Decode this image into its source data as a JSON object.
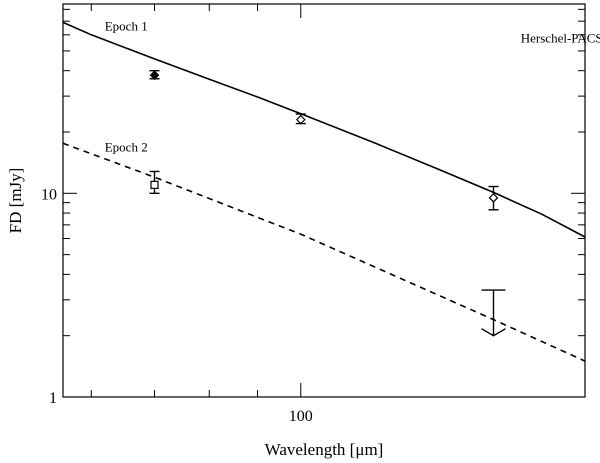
{
  "chart_data": {
    "type": "line",
    "title": "",
    "xlabel": "Wavelength [μm]",
    "ylabel": "FD [mJy]",
    "x_scale": "log",
    "y_scale": "log",
    "xlim": [
      56,
      200
    ],
    "ylim": [
      1,
      85
    ],
    "grid": false,
    "x_ticks": [
      {
        "value": 100,
        "label": "100"
      }
    ],
    "y_ticks": [
      {
        "value": 1,
        "label": "1"
      },
      {
        "value": 10,
        "label": "10"
      }
    ],
    "annotations": [
      {
        "text": "Herschel-PACS",
        "x": 171,
        "y": 55
      },
      {
        "text": "Epoch 1",
        "x": 62,
        "y": 63
      },
      {
        "text": "Epoch 2",
        "x": 62,
        "y": 16
      }
    ],
    "series": [
      {
        "name": "Epoch 1",
        "line_style": "solid",
        "model_x": [
          56,
          60,
          70,
          80,
          90,
          100,
          120,
          140,
          160,
          180,
          200
        ],
        "model_y": [
          69.0,
          60.0,
          45.7,
          36.3,
          29.7,
          24.6,
          17.6,
          13.1,
          10.1,
          7.9,
          6.1
        ],
        "points": [
          {
            "x": 70,
            "y": 38.0,
            "err_low": 36.5,
            "err_high": 40.0,
            "marker": "diamond",
            "filled": true
          },
          {
            "x": 100,
            "y": 23.0,
            "err_low": 22.0,
            "err_high": 24.5,
            "marker": "diamond",
            "filled": false
          },
          {
            "x": 160,
            "y": 9.5,
            "err_low": 8.3,
            "err_high": 10.8,
            "marker": "diamond",
            "filled": false
          }
        ]
      },
      {
        "name": "Epoch 2",
        "line_style": "dashed",
        "model_x": [
          56,
          70,
          100,
          160,
          200
        ],
        "model_y": [
          17.6,
          12.0,
          6.3,
          2.4,
          1.5
        ],
        "points": [
          {
            "x": 70,
            "y": 11.0,
            "err_low": 10.0,
            "err_high": 12.8,
            "marker": "square",
            "filled": false
          }
        ],
        "upper_limits": [
          {
            "x": 160,
            "low": 2.0,
            "high": 3.35
          }
        ]
      }
    ]
  }
}
